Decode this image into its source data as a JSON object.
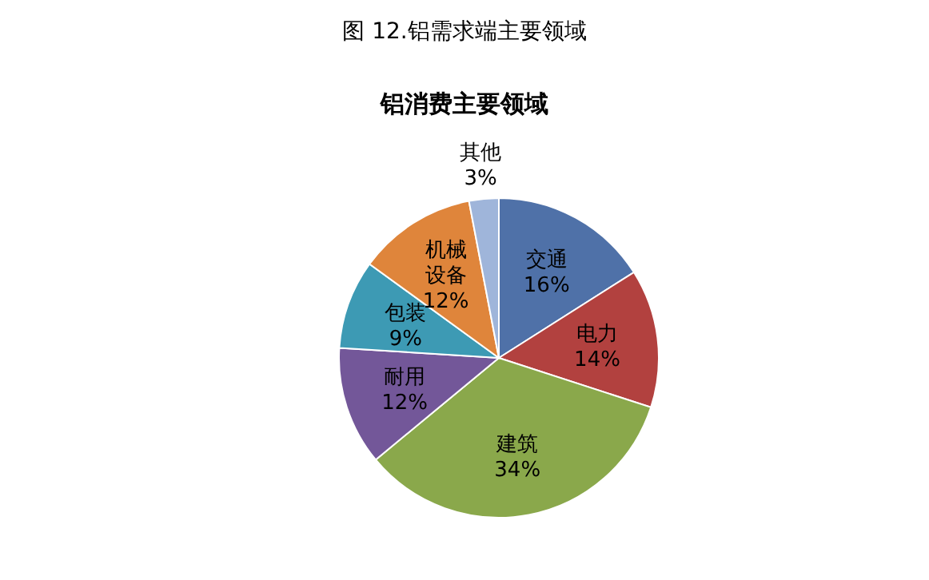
{
  "chart_data": {
    "type": "pie",
    "title": "图 12.铝需求端主要领域",
    "subtitle": "铝消费主要领域",
    "categories": [
      "交通",
      "电力",
      "建筑",
      "耐用",
      "包装",
      "机械设备",
      "其他"
    ],
    "values": [
      16,
      14,
      34,
      12,
      9,
      12,
      3
    ],
    "colors": [
      "#4f71a8",
      "#b2413f",
      "#8aa84b",
      "#735799",
      "#3d9ab4",
      "#df853b",
      "#9fb5da"
    ],
    "value_labels": [
      "16%",
      "14%",
      "34%",
      "12%",
      "9%",
      "12%",
      "3%"
    ]
  }
}
